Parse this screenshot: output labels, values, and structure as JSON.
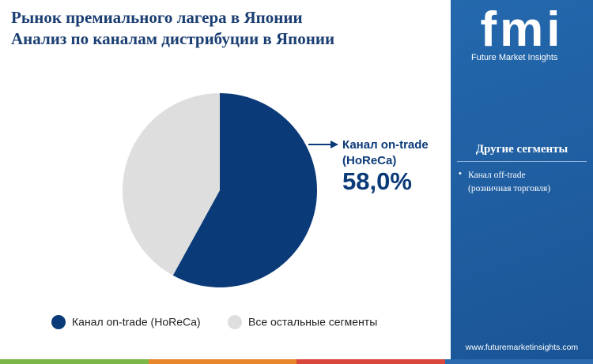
{
  "chart_data": {
    "type": "pie",
    "title": "Рынок премиального лагера в Японии",
    "subtitle": "Анализ по каналам дистрибуции в Японии",
    "categories": [
      "Канал on-trade (HoReCa)",
      "Все остальные сегменты"
    ],
    "values": [
      58.0,
      42.0
    ],
    "value_labels": [
      "58,0%",
      null
    ],
    "colors": [
      "#0b3a78",
      "#dedede"
    ]
  },
  "sidebar": {
    "logo": "fmi",
    "brand": "Future Market Insights",
    "heading": "Другие сегменты",
    "items": [
      "Канал off-trade (розничная торговля)"
    ],
    "website": "www.futuremarketinsights.com"
  }
}
